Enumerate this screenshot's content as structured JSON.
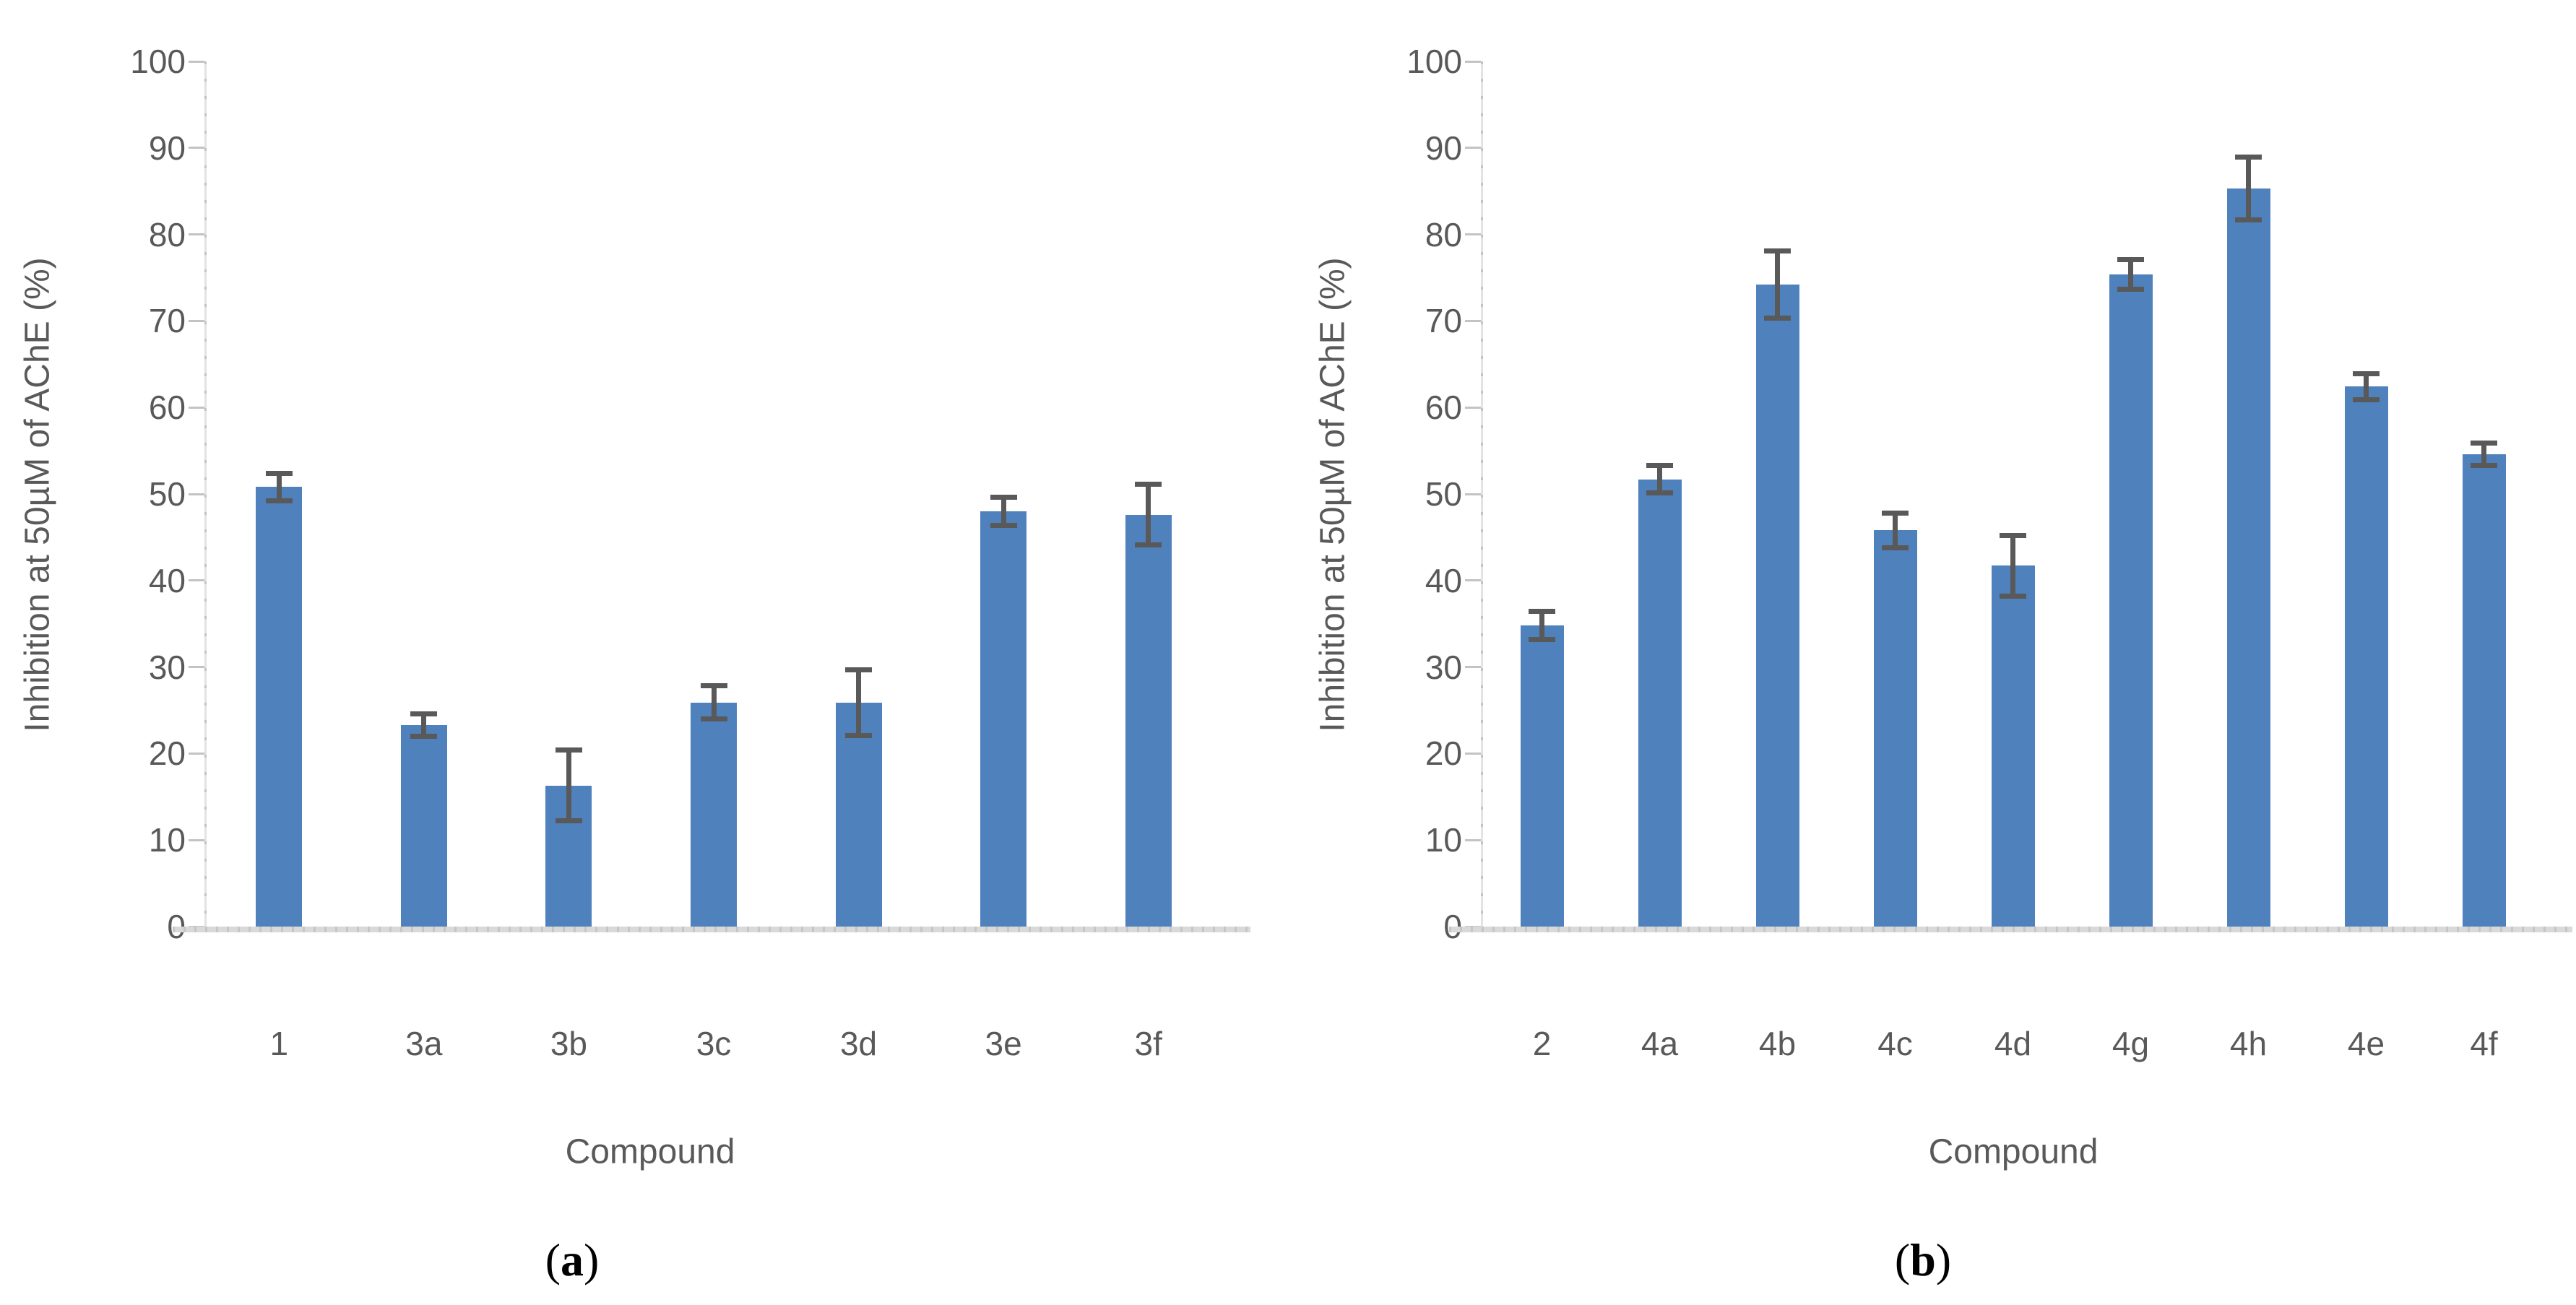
{
  "style": {
    "bar_color": "#4F81BD",
    "error_bar_color": "#595959",
    "axis_line_color": "#C3C3C3",
    "baseline_color": "#D9D9D9",
    "text_color": "#595959",
    "caption_color": "#000000",
    "background": "#FFFFFF"
  },
  "chart_data": [
    {
      "panel": "a",
      "type": "bar",
      "title": "",
      "ylabel": "Inhibition at 50µM of AChE (%)",
      "xlabel": "Compound",
      "ylim": [
        0,
        100
      ],
      "grid": false,
      "legend": null,
      "yticks": [
        "0",
        "10",
        "20",
        "30",
        "40",
        "50",
        "60",
        "70",
        "80",
        "90",
        "100"
      ],
      "categories": [
        "1",
        "3a",
        "3b",
        "3c",
        "3d",
        "3e",
        "3f"
      ],
      "values": [
        50.8,
        23.3,
        16.3,
        25.9,
        25.9,
        48.0,
        47.6
      ],
      "errors": [
        1.6,
        1.3,
        4.1,
        1.9,
        3.8,
        1.6,
        3.5
      ],
      "caption": {
        "open": "(",
        "letter": "a",
        "close": ")"
      }
    },
    {
      "panel": "b",
      "type": "bar",
      "title": "",
      "ylabel": "Inhibition at 50µM of AChE (%)",
      "xlabel": "Compound",
      "ylim": [
        0,
        100
      ],
      "grid": false,
      "legend": null,
      "yticks": [
        "0",
        "10",
        "20",
        "30",
        "40",
        "50",
        "60",
        "70",
        "80",
        "90",
        "100"
      ],
      "categories": [
        "2",
        "4a",
        "4b",
        "4c",
        "4d",
        "4g",
        "4h",
        "4e",
        "4f"
      ],
      "values": [
        34.8,
        51.7,
        74.2,
        45.8,
        41.7,
        75.4,
        85.3,
        62.4,
        54.6
      ],
      "errors": [
        1.6,
        1.6,
        3.9,
        2.0,
        3.5,
        1.7,
        3.6,
        1.5,
        1.3
      ],
      "caption": {
        "open": "(",
        "letter": "b",
        "close": ")"
      }
    }
  ]
}
